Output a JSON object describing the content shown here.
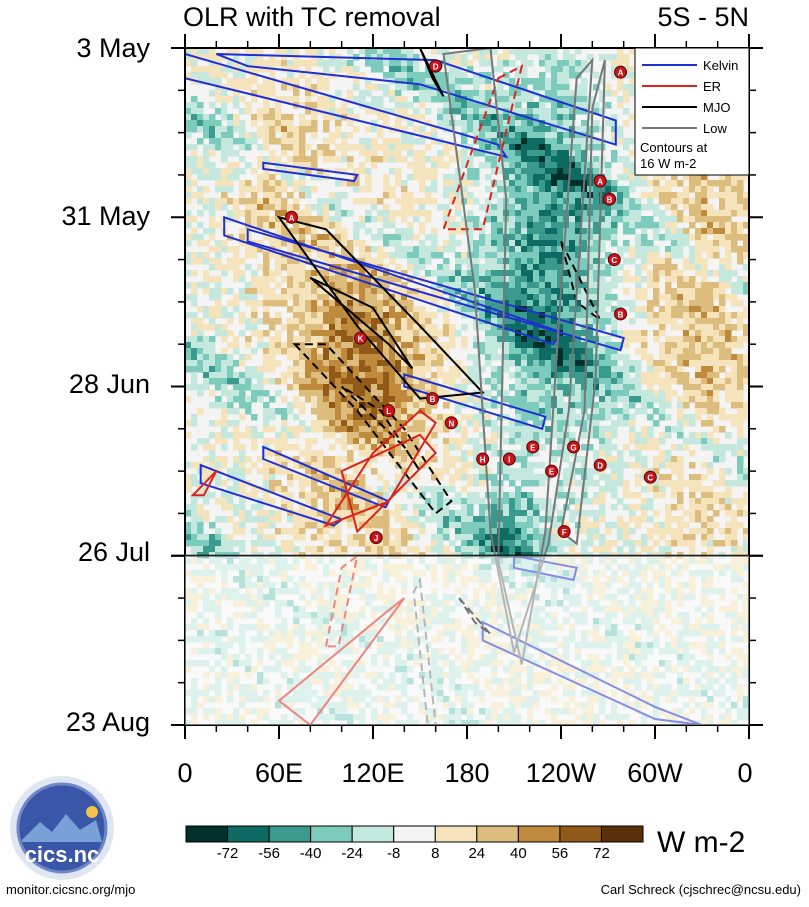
{
  "chart_data": {
    "type": "heatmap",
    "title": "OLR with TC removal",
    "latitude_band": "5S - 5N",
    "y_ticks": [
      "3 May",
      "31 May",
      "28 Jun",
      "26 Jul",
      "23 Aug"
    ],
    "x_ticks": [
      "0",
      "60E",
      "120E",
      "180",
      "120W",
      "60W",
      "0"
    ],
    "x_range_deg": [
      0,
      360
    ],
    "y_range_days": [
      0,
      112
    ],
    "forecast_start_label": "26 Jul",
    "units": "W m-2",
    "colorbar_ticks": [
      "-72",
      "-56",
      "-40",
      "-24",
      "-8",
      "8",
      "24",
      "40",
      "56",
      "72"
    ],
    "colorbar_colors": [
      "#00302a",
      "#0e6b63",
      "#3a9a8e",
      "#7ccbbd",
      "#c4e8de",
      "#f4f4f4",
      "#f4e3bb",
      "#ddbd7e",
      "#bf8a3c",
      "#925a18",
      "#5a300a"
    ],
    "legend": {
      "entries": [
        {
          "label": "Kelvin",
          "color": "#1f2fd6"
        },
        {
          "label": "ER",
          "color": "#e0201a"
        },
        {
          "label": "MJO",
          "color": "#000000"
        },
        {
          "label": "Low",
          "color": "#777777"
        }
      ],
      "note_line1": "Contours at",
      "note_line2": "16 W m-2"
    },
    "tc_markers": [
      {
        "letter": "D",
        "lon": 160,
        "day": 3
      },
      {
        "letter": "A",
        "lon": 278,
        "day": 4
      },
      {
        "letter": "A",
        "lon": 265,
        "day": 22
      },
      {
        "letter": "B",
        "lon": 271,
        "day": 25
      },
      {
        "letter": "A",
        "lon": 68,
        "day": 28
      },
      {
        "letter": "C",
        "lon": 274,
        "day": 35
      },
      {
        "letter": "B",
        "lon": 278,
        "day": 44
      },
      {
        "letter": "K",
        "lon": 112,
        "day": 48
      },
      {
        "letter": "B",
        "lon": 158,
        "day": 58
      },
      {
        "letter": "L",
        "lon": 130,
        "day": 60
      },
      {
        "letter": "N",
        "lon": 170,
        "day": 62
      },
      {
        "letter": "E",
        "lon": 222,
        "day": 66
      },
      {
        "letter": "G",
        "lon": 248,
        "day": 66
      },
      {
        "letter": "H",
        "lon": 190,
        "day": 68
      },
      {
        "letter": "I",
        "lon": 207,
        "day": 68
      },
      {
        "letter": "D",
        "lon": 265,
        "day": 69
      },
      {
        "letter": "E",
        "lon": 234,
        "day": 70
      },
      {
        "letter": "C",
        "lon": 297,
        "day": 71
      },
      {
        "letter": "J",
        "lon": 122,
        "day": 81
      },
      {
        "letter": "F",
        "lon": 242,
        "day": 80
      }
    ]
  },
  "credits": {
    "left": "monitor.cicsnc.org/mjo",
    "right": "Carl Schreck (cjschrec@ncsu.edu)",
    "logo_text": "cics.nc",
    "logo_ring_text": "Cooperative Institute for Climate and Satellites"
  }
}
